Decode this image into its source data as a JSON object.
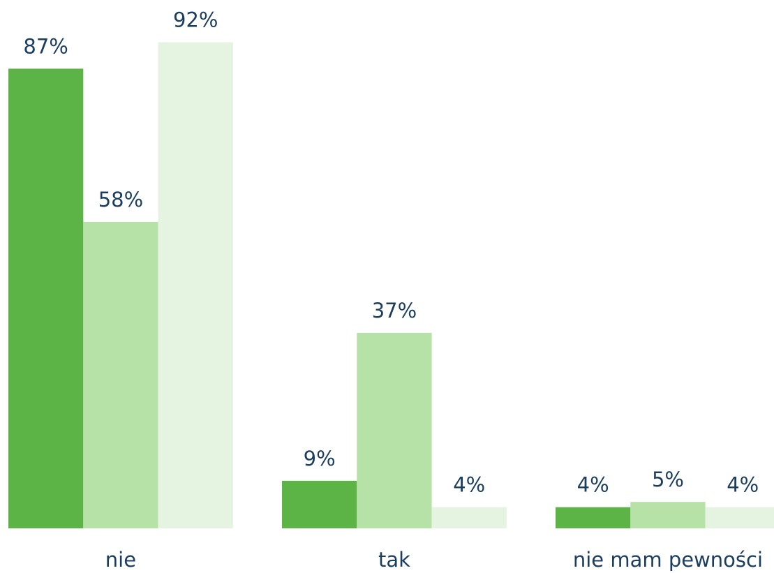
{
  "chart_data": {
    "type": "bar",
    "categories": [
      "nie",
      "tak",
      "nie mam pewności"
    ],
    "series": [
      {
        "color": "#5db446",
        "values": [
          87,
          9,
          4
        ],
        "value_labels": [
          "87%",
          "9%",
          "4%"
        ]
      },
      {
        "color": "#b6e2a8",
        "values": [
          58,
          37,
          5
        ],
        "value_labels": [
          "58%",
          "37%",
          "5%"
        ]
      },
      {
        "color": "#e5f4e1",
        "values": [
          92,
          4,
          4
        ],
        "value_labels": [
          "92%",
          "4%",
          "4%"
        ]
      }
    ]
  }
}
